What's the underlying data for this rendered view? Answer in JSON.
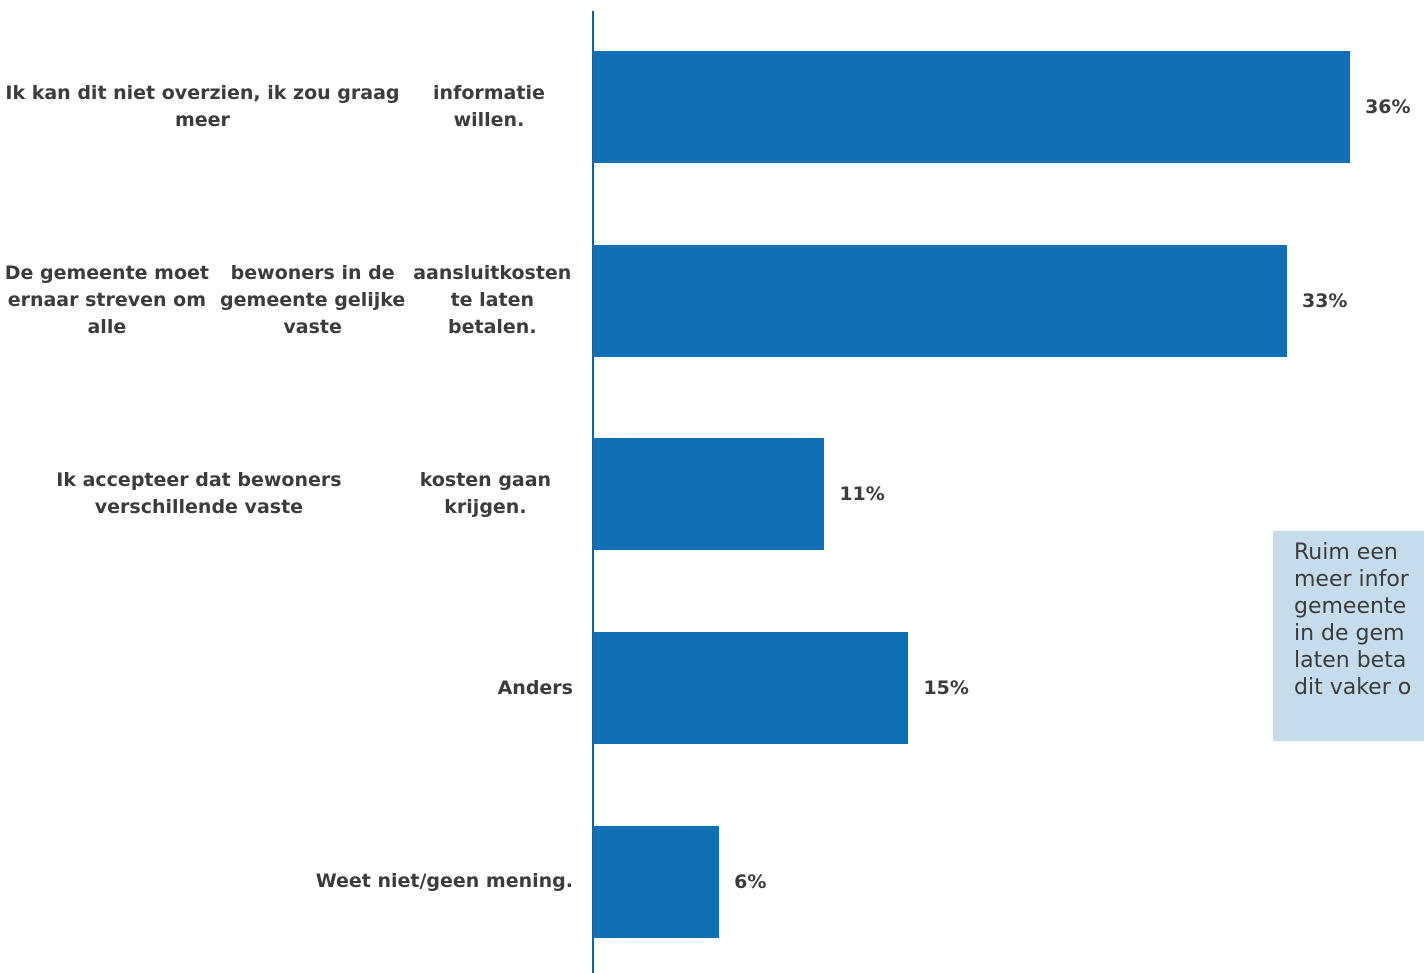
{
  "chart_data": {
    "type": "bar",
    "orientation": "horizontal",
    "categories": [
      "Ik kan dit niet overzien, ik zou graag meer informatie willen.",
      "De gemeente moet ernaar streven om alle bewoners in de gemeente gelijke vaste aansluitkosten te laten betalen.",
      "Ik accepteer dat bewoners verschillende vaste kosten gaan krijgen.",
      "Anders",
      "Weet niet/geen mening."
    ],
    "category_lines": [
      [
        "Ik kan dit niet overzien, ik zou graag meer",
        "informatie willen."
      ],
      [
        "De gemeente moet ernaar streven om alle",
        "bewoners in de gemeente gelijke vaste",
        "aansluitkosten te laten betalen."
      ],
      [
        "Ik accepteer dat bewoners verschillende vaste",
        "kosten gaan krijgen."
      ],
      [
        "Anders"
      ],
      [
        "Weet niet/geen mening."
      ]
    ],
    "values": [
      36,
      33,
      11,
      15,
      6
    ],
    "value_labels": [
      "36%",
      "33%",
      "11%",
      "15%",
      "6%"
    ],
    "unit": "%",
    "grid": false,
    "legend": "none"
  },
  "callout": {
    "lines": [
      "Ruim een",
      "meer infor",
      "gemeente",
      "in de gem",
      "laten beta",
      "dit vaker o"
    ]
  },
  "colors": {
    "bar": "#1170b3",
    "axis": "#1a5e93",
    "callout_bg": "#c5dcec",
    "text": "#3c3c3c"
  }
}
